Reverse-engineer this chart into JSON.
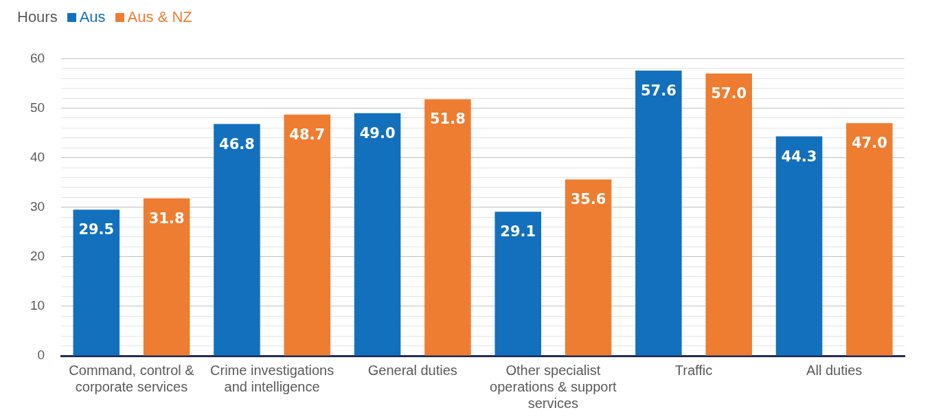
{
  "chart_data": {
    "type": "bar",
    "ylabel": "Hours",
    "categories": [
      "Command, control & corporate services",
      "Crime investigations and intelligence",
      "General duties",
      "Other specialist operations & support services",
      "Traffic",
      "All duties"
    ],
    "series": [
      {
        "name": "Aus",
        "color": "#1370bd",
        "values": [
          29.5,
          46.8,
          49.0,
          29.1,
          57.6,
          44.3
        ],
        "value_labels": [
          "29.5",
          "46.8",
          "49.0",
          "29.1",
          "57.6",
          "44.3"
        ]
      },
      {
        "name": "Aus & NZ",
        "color": "#ee7d31",
        "values": [
          31.8,
          48.7,
          51.8,
          35.6,
          57.0,
          47.0
        ],
        "value_labels": [
          "31.8",
          "48.7",
          "51.8",
          "35.6",
          "57.0",
          "47.0"
        ]
      }
    ],
    "ylim": [
      0,
      60
    ],
    "yticks": [
      0,
      {
        "value": 2,
        "label": null
      },
      {
        "value": 4,
        "label": null
      },
      {
        "value": 6,
        "label": null
      },
      {
        "value": 8,
        "label": null
      },
      10,
      {
        "value": 12,
        "label": null
      },
      {
        "value": 14,
        "label": null
      },
      {
        "value": 16,
        "label": null
      },
      {
        "value": 18,
        "label": null
      },
      20,
      {
        "value": 22,
        "label": null
      },
      {
        "value": 24,
        "label": null
      },
      {
        "value": 26,
        "label": null
      },
      {
        "value": 28,
        "label": null
      },
      30,
      {
        "value": 32,
        "label": null
      },
      {
        "value": 34,
        "label": null
      },
      {
        "value": 36,
        "label": null
      },
      {
        "value": 38,
        "label": null
      },
      40,
      {
        "value": 42,
        "label": null
      },
      {
        "value": 44,
        "label": null
      },
      {
        "value": 46,
        "label": null
      },
      {
        "value": 48,
        "label": null
      },
      50,
      {
        "value": 52,
        "label": null
      },
      {
        "value": 54,
        "label": null
      },
      {
        "value": 56,
        "label": null
      },
      {
        "value": 58,
        "label": null
      },
      60
    ],
    "grid": "y",
    "legend": "top left"
  }
}
